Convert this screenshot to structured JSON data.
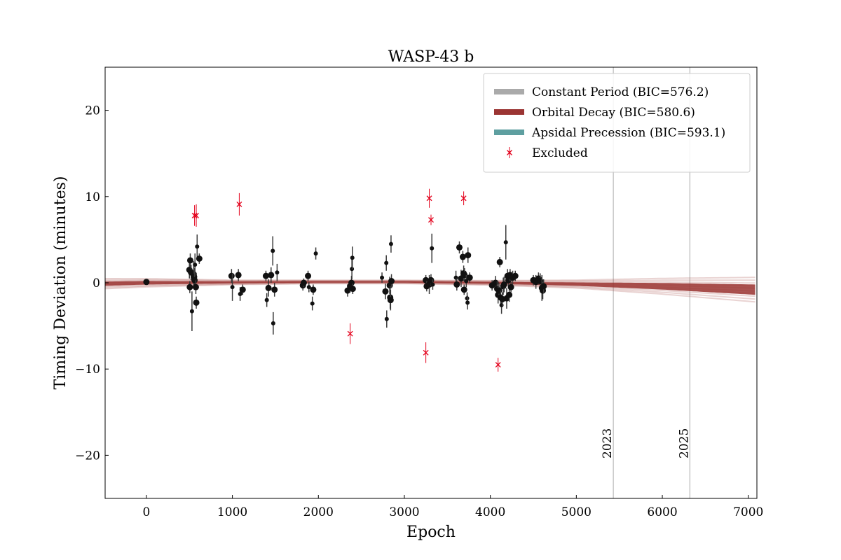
{
  "chart_data": {
    "type": "scatter",
    "title": "WASP-43 b",
    "xlabel": "Epoch",
    "ylabel": "Timing Deviation (minutes)",
    "xlim": [
      -480,
      7100
    ],
    "ylim": [
      -25,
      25
    ],
    "xticks": [
      0,
      1000,
      2000,
      3000,
      4000,
      5000,
      6000,
      7000
    ],
    "xtick_labels": [
      "0",
      "1000",
      "2000",
      "3000",
      "4000",
      "5000",
      "6000",
      "7000"
    ],
    "yticks": [
      -20,
      -10,
      0,
      10,
      20
    ],
    "ytick_labels": [
      "−20",
      "−10",
      "0",
      "10",
      "20"
    ],
    "legend_position": "top-right",
    "legend": [
      {
        "label": "Constant Period (BIC=576.2)",
        "color": "#aaaaaa",
        "kind": "band"
      },
      {
        "label": "Orbital Decay (BIC=580.6)",
        "color": "#9b3533",
        "kind": "band"
      },
      {
        "label": "Apsidal Precession (BIC=593.1)",
        "color": "#5e9fa0",
        "kind": "band"
      },
      {
        "label": "Excluded",
        "color": "#e3001b",
        "kind": "marker"
      }
    ],
    "vertical_lines": [
      {
        "x": 5430,
        "label": "2023"
      },
      {
        "x": 6320,
        "label": "2025"
      }
    ],
    "included_points": [
      [
        0,
        0.1,
        0.2,
        "L"
      ],
      [
        500,
        1.5,
        1.0,
        "L"
      ],
      [
        505,
        -0.5,
        0.7,
        "L"
      ],
      [
        510,
        2.6,
        0.8,
        "L"
      ],
      [
        520,
        1.2,
        0.9,
        "L"
      ],
      [
        530,
        -3.3,
        2.3,
        "S"
      ],
      [
        550,
        1.0,
        1.5,
        "L"
      ],
      [
        555,
        0.7,
        1.0,
        "L"
      ],
      [
        560,
        0.3,
        0.8,
        "L"
      ],
      [
        565,
        2.1,
        1.3,
        "S"
      ],
      [
        575,
        -0.5,
        0.8,
        "L"
      ],
      [
        580,
        -2.3,
        0.7,
        "L"
      ],
      [
        590,
        4.2,
        1.4,
        "S"
      ],
      [
        615,
        2.8,
        0.6,
        "L"
      ],
      [
        990,
        0.8,
        0.8,
        "L"
      ],
      [
        1000,
        -0.5,
        1.6,
        "S"
      ],
      [
        1070,
        0.9,
        0.7,
        "L"
      ],
      [
        1090,
        -1.3,
        0.8,
        "S"
      ],
      [
        1120,
        -0.8,
        0.6,
        "L"
      ],
      [
        1390,
        0.8,
        0.6,
        "L"
      ],
      [
        1400,
        -2.0,
        0.8,
        "S"
      ],
      [
        1420,
        -0.6,
        1.0,
        "L"
      ],
      [
        1450,
        0.9,
        0.9,
        "L"
      ],
      [
        1470,
        3.7,
        1.7,
        "S"
      ],
      [
        1475,
        -4.7,
        1.3,
        "S"
      ],
      [
        1490,
        -0.8,
        0.8,
        "L"
      ],
      [
        1520,
        1.2,
        1.0,
        "S"
      ],
      [
        1820,
        -0.3,
        0.6,
        "L"
      ],
      [
        1830,
        0.0,
        0.5,
        "L"
      ],
      [
        1880,
        0.8,
        0.6,
        "L"
      ],
      [
        1890,
        -0.5,
        0.6,
        "S"
      ],
      [
        1930,
        -2.4,
        0.8,
        "S"
      ],
      [
        1940,
        -0.8,
        0.6,
        "L"
      ],
      [
        1970,
        3.4,
        0.7,
        "S"
      ],
      [
        2340,
        -0.9,
        0.7,
        "L"
      ],
      [
        2370,
        -0.4,
        0.7,
        "L"
      ],
      [
        2385,
        0.0,
        0.8,
        "L"
      ],
      [
        2390,
        1.6,
        1.2,
        "S"
      ],
      [
        2395,
        2.9,
        1.3,
        "S"
      ],
      [
        2400,
        -0.7,
        0.6,
        "L"
      ],
      [
        2740,
        0.6,
        0.6,
        "S"
      ],
      [
        2780,
        -1.0,
        0.9,
        "L"
      ],
      [
        2790,
        2.3,
        0.9,
        "S"
      ],
      [
        2795,
        -4.2,
        1.0,
        "S"
      ],
      [
        2830,
        -0.3,
        1.0,
        "L"
      ],
      [
        2835,
        -1.7,
        1.3,
        "L"
      ],
      [
        2840,
        -2.0,
        1.2,
        "L"
      ],
      [
        2845,
        4.5,
        1.0,
        "S"
      ],
      [
        2850,
        0.2,
        0.8,
        "L"
      ],
      [
        3250,
        0.3,
        0.6,
        "L"
      ],
      [
        3260,
        -0.4,
        0.6,
        "L"
      ],
      [
        3290,
        -0.2,
        1.1,
        "L"
      ],
      [
        3310,
        0.3,
        0.7,
        "L"
      ],
      [
        3320,
        4.0,
        1.7,
        "S"
      ],
      [
        3330,
        -0.2,
        0.6,
        "S"
      ],
      [
        3600,
        0.6,
        0.8,
        "S"
      ],
      [
        3610,
        -0.2,
        0.7,
        "L"
      ],
      [
        3640,
        4.1,
        0.7,
        "L"
      ],
      [
        3660,
        0.5,
        1.0,
        "L"
      ],
      [
        3680,
        3.0,
        0.7,
        "L"
      ],
      [
        3690,
        1.1,
        0.9,
        "L"
      ],
      [
        3695,
        -0.8,
        0.6,
        "L"
      ],
      [
        3700,
        0.9,
        0.8,
        "L"
      ],
      [
        3720,
        0.2,
        0.7,
        "S"
      ],
      [
        3730,
        -1.8,
        0.7,
        "S"
      ],
      [
        3735,
        -2.3,
        0.8,
        "S"
      ],
      [
        3740,
        3.2,
        0.9,
        "L"
      ],
      [
        3760,
        0.6,
        0.6,
        "L"
      ],
      [
        4020,
        -0.3,
        0.6,
        "L"
      ],
      [
        4060,
        0.0,
        0.8,
        "L"
      ],
      [
        4080,
        -0.7,
        0.9,
        "L"
      ],
      [
        4090,
        -1.4,
        1.0,
        "L"
      ],
      [
        4100,
        -0.9,
        0.9,
        "L"
      ],
      [
        4110,
        2.4,
        0.6,
        "L"
      ],
      [
        4120,
        -1.7,
        0.8,
        "L"
      ],
      [
        4130,
        -2.6,
        1.0,
        "S"
      ],
      [
        4140,
        -1.9,
        0.8,
        "L"
      ],
      [
        4150,
        -0.4,
        1.0,
        "L"
      ],
      [
        4160,
        -0.2,
        0.9,
        "L"
      ],
      [
        4180,
        4.7,
        2.0,
        "S"
      ],
      [
        4190,
        -1.8,
        1.2,
        "L"
      ],
      [
        4200,
        0.8,
        0.8,
        "L"
      ],
      [
        4210,
        0.3,
        0.9,
        "L"
      ],
      [
        4220,
        -1.4,
        0.8,
        "L"
      ],
      [
        4230,
        0.9,
        0.7,
        "L"
      ],
      [
        4240,
        -0.5,
        0.6,
        "L"
      ],
      [
        4260,
        0.6,
        0.8,
        "L"
      ],
      [
        4290,
        0.8,
        0.6,
        "L"
      ],
      [
        4500,
        0.3,
        0.6,
        "L"
      ],
      [
        4530,
        0.1,
        0.8,
        "L"
      ],
      [
        4560,
        0.5,
        0.7,
        "L"
      ],
      [
        4580,
        0.2,
        0.9,
        "L"
      ],
      [
        4600,
        -0.6,
        1.5,
        "L"
      ],
      [
        4610,
        -0.9,
        1.0,
        "L"
      ],
      [
        4620,
        -0.4,
        0.8,
        "L"
      ]
    ],
    "excluded_points": [
      [
        560,
        7.8,
        1.2
      ],
      [
        580,
        7.8,
        1.3
      ],
      [
        1080,
        9.1,
        1.3
      ],
      [
        2370,
        -5.9,
        1.2
      ],
      [
        3250,
        -8.1,
        1.2
      ],
      [
        3290,
        9.8,
        1.1
      ],
      [
        3310,
        7.3,
        0.6
      ],
      [
        3690,
        9.8,
        0.8
      ],
      [
        4090,
        -9.5,
        0.8
      ]
    ],
    "models": {
      "constant_period": {
        "value": 0.0
      },
      "orbital_decay_center": [
        [
          -480,
          -0.1
        ],
        [
          0,
          0.0
        ],
        [
          2000,
          0.1
        ],
        [
          3000,
          0.1
        ],
        [
          4000,
          0.0
        ],
        [
          5000,
          -0.15
        ],
        [
          6000,
          -0.4
        ],
        [
          7100,
          -0.8
        ]
      ],
      "orbital_decay_spread": [
        [
          -480,
          0.45
        ],
        [
          1000,
          0.2
        ],
        [
          2000,
          0.15
        ],
        [
          3000,
          0.15
        ],
        [
          4000,
          0.2
        ],
        [
          5000,
          0.35
        ],
        [
          6000,
          0.7
        ],
        [
          7100,
          1.1
        ]
      ]
    }
  }
}
